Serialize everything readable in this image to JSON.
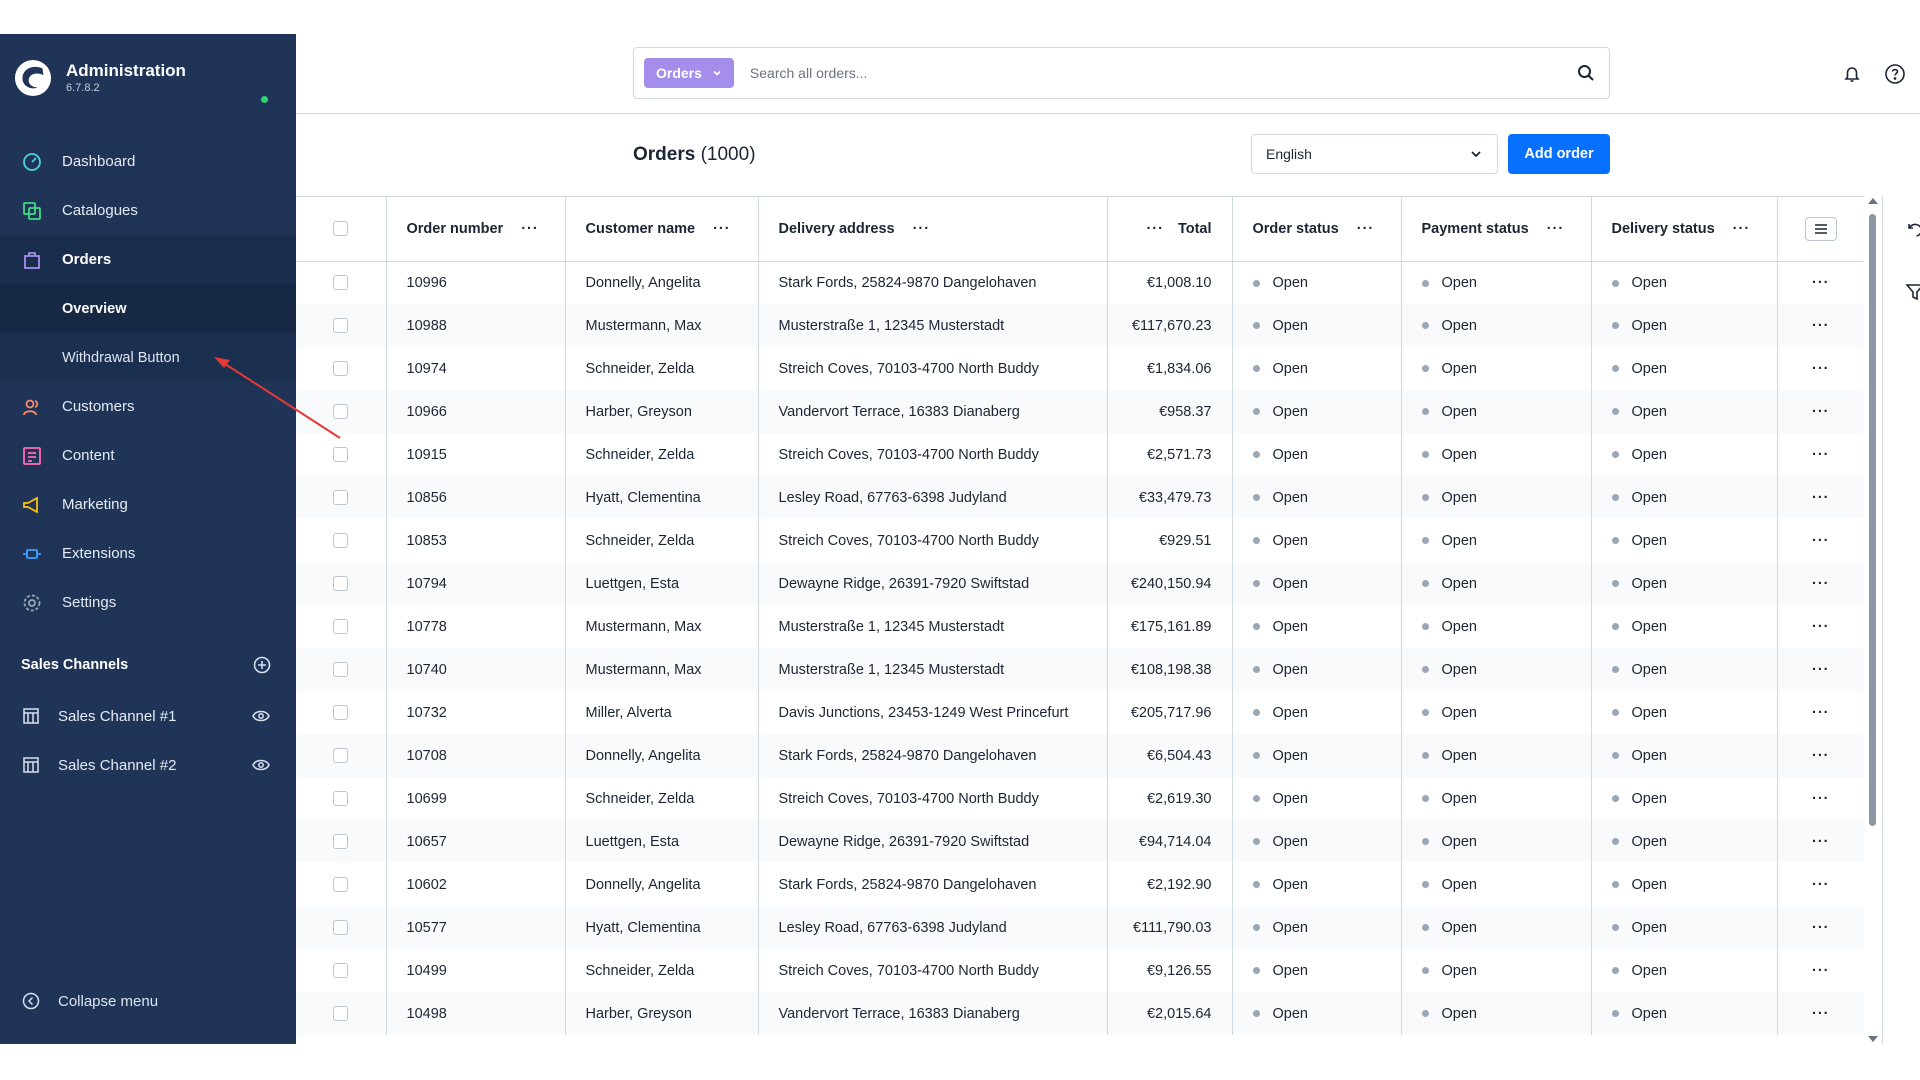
{
  "app": {
    "title": "Administration",
    "version": "6.7.8.2"
  },
  "colors": {
    "sidebar_bg": "#1f3457",
    "primary": "#0870ff",
    "search_type_bg": "#a58dec",
    "status_online": "#2ed573",
    "annotation_arrow": "#e53935"
  },
  "sidebar": {
    "items": [
      {
        "label": "Dashboard",
        "icon": "dashboard-gauge-icon"
      },
      {
        "label": "Catalogues",
        "icon": "catalogues-icon"
      },
      {
        "label": "Orders",
        "icon": "orders-bag-icon"
      },
      {
        "label": "Customers",
        "icon": "customers-icon"
      },
      {
        "label": "Content",
        "icon": "content-icon"
      },
      {
        "label": "Marketing",
        "icon": "marketing-megaphone-icon"
      },
      {
        "label": "Extensions",
        "icon": "extensions-plug-icon"
      },
      {
        "label": "Settings",
        "icon": "settings-gear-icon"
      }
    ],
    "sub_items": [
      {
        "label": "Overview"
      },
      {
        "label": "Withdrawal Button"
      }
    ],
    "sales_channels_title": "Sales Channels",
    "sales_channels": [
      {
        "label": "Sales Channel #1",
        "icon": "storefront-icon"
      },
      {
        "label": "Sales Channel #2",
        "icon": "storefront-icon"
      }
    ],
    "collapse_label": "Collapse menu"
  },
  "search": {
    "type_label": "Orders",
    "placeholder": "Search all orders..."
  },
  "page": {
    "title": "Orders",
    "count": "(1000)",
    "language": "English",
    "add_button": "Add order"
  },
  "table": {
    "columns": [
      "Order number",
      "Customer name",
      "Delivery address",
      "Total",
      "Order status",
      "Payment status",
      "Delivery status"
    ],
    "rows": [
      {
        "number": "10996",
        "customer": "Donnelly, Angelita",
        "address": "Stark Fords, 25824-9870 Dangelohaven",
        "total": "€1,008.10",
        "order_status": "Open",
        "payment_status": "Open",
        "delivery_status": "Open"
      },
      {
        "number": "10988",
        "customer": "Mustermann, Max",
        "address": "Musterstraße 1, 12345 Musterstadt",
        "total": "€117,670.23",
        "order_status": "Open",
        "payment_status": "Open",
        "delivery_status": "Open"
      },
      {
        "number": "10974",
        "customer": "Schneider, Zelda",
        "address": "Streich Coves, 70103-4700 North Buddy",
        "total": "€1,834.06",
        "order_status": "Open",
        "payment_status": "Open",
        "delivery_status": "Open"
      },
      {
        "number": "10966",
        "customer": "Harber, Greyson",
        "address": "Vandervort Terrace, 16383 Dianaberg",
        "total": "€958.37",
        "order_status": "Open",
        "payment_status": "Open",
        "delivery_status": "Open"
      },
      {
        "number": "10915",
        "customer": "Schneider, Zelda",
        "address": "Streich Coves, 70103-4700 North Buddy",
        "total": "€2,571.73",
        "order_status": "Open",
        "payment_status": "Open",
        "delivery_status": "Open"
      },
      {
        "number": "10856",
        "customer": "Hyatt, Clementina",
        "address": "Lesley Road, 67763-6398 Judyland",
        "total": "€33,479.73",
        "order_status": "Open",
        "payment_status": "Open",
        "delivery_status": "Open"
      },
      {
        "number": "10853",
        "customer": "Schneider, Zelda",
        "address": "Streich Coves, 70103-4700 North Buddy",
        "total": "€929.51",
        "order_status": "Open",
        "payment_status": "Open",
        "delivery_status": "Open"
      },
      {
        "number": "10794",
        "customer": "Luettgen, Esta",
        "address": "Dewayne Ridge, 26391-7920 Swiftstad",
        "total": "€240,150.94",
        "order_status": "Open",
        "payment_status": "Open",
        "delivery_status": "Open"
      },
      {
        "number": "10778",
        "customer": "Mustermann, Max",
        "address": "Musterstraße 1, 12345 Musterstadt",
        "total": "€175,161.89",
        "order_status": "Open",
        "payment_status": "Open",
        "delivery_status": "Open"
      },
      {
        "number": "10740",
        "customer": "Mustermann, Max",
        "address": "Musterstraße 1, 12345 Musterstadt",
        "total": "€108,198.38",
        "order_status": "Open",
        "payment_status": "Open",
        "delivery_status": "Open"
      },
      {
        "number": "10732",
        "customer": "Miller, Alverta",
        "address": "Davis Junctions, 23453-1249 West Princefurt",
        "total": "€205,717.96",
        "order_status": "Open",
        "payment_status": "Open",
        "delivery_status": "Open"
      },
      {
        "number": "10708",
        "customer": "Donnelly, Angelita",
        "address": "Stark Fords, 25824-9870 Dangelohaven",
        "total": "€6,504.43",
        "order_status": "Open",
        "payment_status": "Open",
        "delivery_status": "Open"
      },
      {
        "number": "10699",
        "customer": "Schneider, Zelda",
        "address": "Streich Coves, 70103-4700 North Buddy",
        "total": "€2,619.30",
        "order_status": "Open",
        "payment_status": "Open",
        "delivery_status": "Open"
      },
      {
        "number": "10657",
        "customer": "Luettgen, Esta",
        "address": "Dewayne Ridge, 26391-7920 Swiftstad",
        "total": "€94,714.04",
        "order_status": "Open",
        "payment_status": "Open",
        "delivery_status": "Open"
      },
      {
        "number": "10602",
        "customer": "Donnelly, Angelita",
        "address": "Stark Fords, 25824-9870 Dangelohaven",
        "total": "€2,192.90",
        "order_status": "Open",
        "payment_status": "Open",
        "delivery_status": "Open"
      },
      {
        "number": "10577",
        "customer": "Hyatt, Clementina",
        "address": "Lesley Road, 67763-6398 Judyland",
        "total": "€111,790.03",
        "order_status": "Open",
        "payment_status": "Open",
        "delivery_status": "Open"
      },
      {
        "number": "10499",
        "customer": "Schneider, Zelda",
        "address": "Streich Coves, 70103-4700 North Buddy",
        "total": "€9,126.55",
        "order_status": "Open",
        "payment_status": "Open",
        "delivery_status": "Open"
      },
      {
        "number": "10498",
        "customer": "Harber, Greyson",
        "address": "Vandervort Terrace, 16383 Dianaberg",
        "total": "€2,015.64",
        "order_status": "Open",
        "payment_status": "Open",
        "delivery_status": "Open"
      }
    ]
  }
}
